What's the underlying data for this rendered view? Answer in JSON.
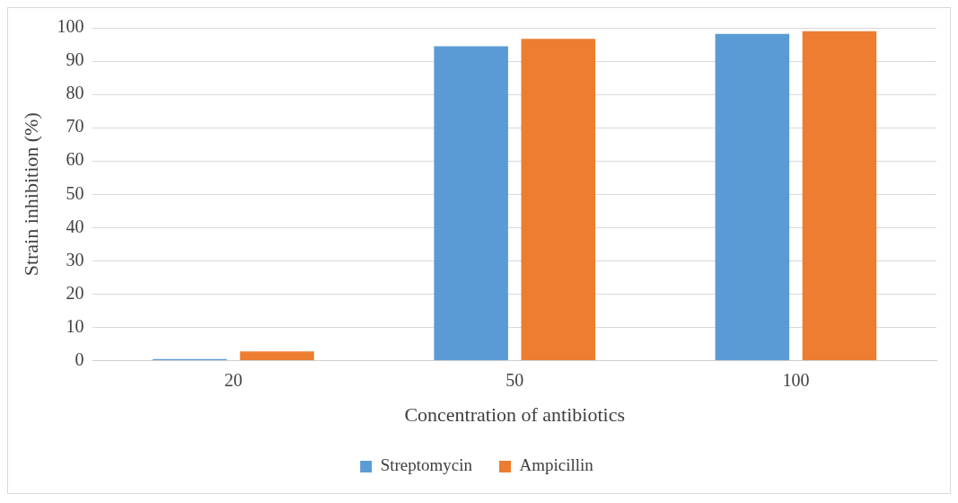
{
  "chart_data": {
    "type": "bar",
    "xlabel": "Concentration of antibiotics",
    "ylabel": "Strain inhibition (%)",
    "categories": [
      "20",
      "50",
      "100"
    ],
    "series": [
      {
        "name": "Streptomycin",
        "color": "#5b9bd5",
        "values": [
          0.5,
          94.5,
          98.2
        ]
      },
      {
        "name": "Ampicillin",
        "color": "#ed7d31",
        "values": [
          2.8,
          96.7,
          99.0
        ]
      }
    ],
    "ylim": [
      0,
      100
    ],
    "yticks": [
      0,
      10,
      20,
      30,
      40,
      50,
      60,
      70,
      80,
      90,
      100
    ],
    "grid": "y",
    "legend": "bottom"
  }
}
